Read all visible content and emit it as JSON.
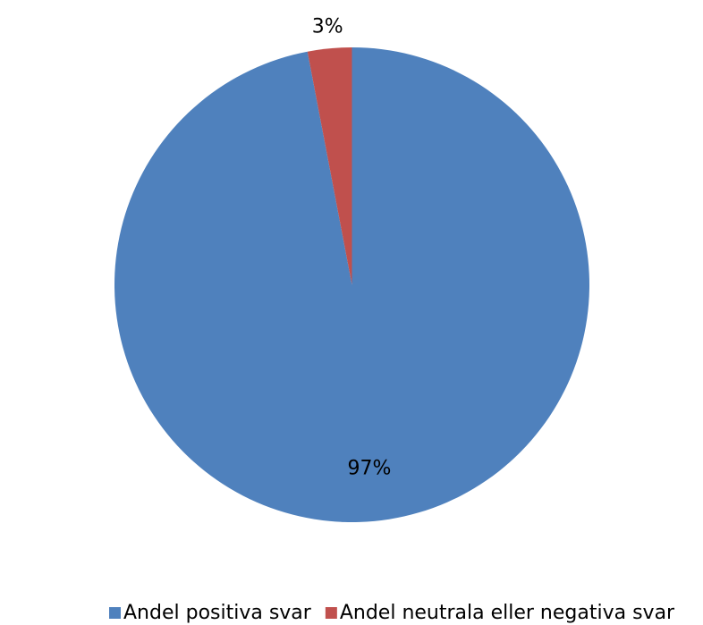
{
  "chart_data": {
    "type": "pie",
    "categories": [
      "Andel positiva svar",
      "Andel neutrala eller negativa svar"
    ],
    "values": [
      97,
      3
    ],
    "value_labels": [
      "97%",
      "3%"
    ],
    "colors": [
      "#4f81bd",
      "#c0504d"
    ],
    "legend": "bottom"
  }
}
